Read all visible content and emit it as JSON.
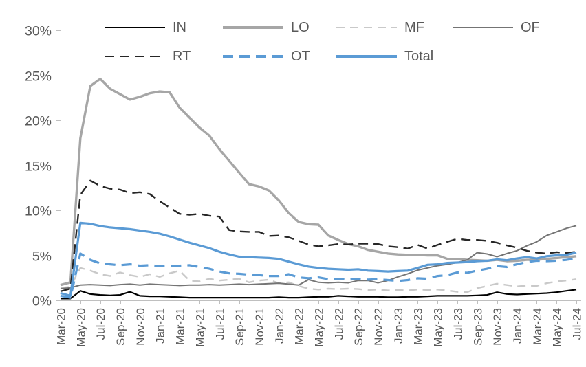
{
  "chart_data": {
    "type": "line",
    "title": "",
    "xlabel": "",
    "ylabel": "",
    "grid": false,
    "legend_position": "top",
    "ylim": [
      0,
      30
    ],
    "y_tick_step": 5,
    "y_tick_suffix": "%",
    "y_tick_labels": [
      "0%",
      "5%",
      "10%",
      "15%",
      "20%",
      "25%",
      "30%"
    ],
    "x_tick_every": 2,
    "x_categories": [
      "Mar-20",
      "Apr-20",
      "May-20",
      "Jun-20",
      "Jul-20",
      "Aug-20",
      "Sep-20",
      "Oct-20",
      "Nov-20",
      "Dec-20",
      "Jan-21",
      "Feb-21",
      "Mar-21",
      "Apr-21",
      "May-21",
      "Jun-21",
      "Jul-21",
      "Aug-21",
      "Sep-21",
      "Oct-21",
      "Nov-21",
      "Dec-21",
      "Jan-22",
      "Feb-22",
      "Mar-22",
      "Apr-22",
      "May-22",
      "Jun-22",
      "Jul-22",
      "Aug-22",
      "Sep-22",
      "Oct-22",
      "Nov-22",
      "Dec-22",
      "Jan-23",
      "Feb-23",
      "Mar-23",
      "Apr-23",
      "May-23",
      "Jun-23",
      "Jul-23",
      "Aug-23",
      "Sep-23",
      "Oct-23",
      "Nov-23",
      "Dec-23",
      "Jan-24",
      "Feb-24",
      "Mar-24",
      "Apr-24",
      "May-24",
      "Jun-24",
      "Jul-24"
    ],
    "axis_color": "#BFBFBF",
    "label_color": "#595959",
    "series": [
      {
        "name": "IN",
        "color": "#000000",
        "dash": null,
        "width": 2.2,
        "values": [
          0.2,
          0.2,
          1.05,
          0.7,
          0.6,
          0.55,
          0.6,
          0.95,
          0.5,
          0.45,
          0.45,
          0.4,
          0.35,
          0.3,
          0.3,
          0.3,
          0.3,
          0.3,
          0.3,
          0.3,
          0.3,
          0.3,
          0.35,
          0.3,
          0.3,
          0.35,
          0.4,
          0.4,
          0.5,
          0.45,
          0.4,
          0.4,
          0.4,
          0.35,
          0.35,
          0.4,
          0.4,
          0.45,
          0.5,
          0.5,
          0.5,
          0.5,
          0.55,
          0.6,
          0.9,
          0.7,
          0.65,
          0.7,
          0.75,
          0.8,
          0.9,
          1.05,
          1.2
        ]
      },
      {
        "name": "LO",
        "color": "#A6A6A6",
        "dash": null,
        "width": 3.4,
        "values": [
          1.7,
          2.0,
          18.0,
          23.8,
          24.6,
          23.5,
          22.9,
          22.3,
          22.6,
          23.0,
          23.2,
          23.1,
          21.4,
          20.3,
          19.2,
          18.3,
          16.8,
          15.5,
          14.2,
          12.9,
          12.65,
          12.2,
          11.1,
          9.7,
          8.7,
          8.45,
          8.4,
          7.2,
          6.7,
          6.25,
          6.0,
          5.6,
          5.4,
          5.2,
          5.1,
          5.05,
          5.05,
          5.0,
          5.0,
          4.6,
          4.6,
          4.5,
          4.45,
          4.4,
          4.5,
          4.35,
          4.4,
          4.5,
          4.5,
          4.6,
          4.7,
          4.8,
          4.9
        ]
      },
      {
        "name": "MF",
        "color": "#C9C9C9",
        "dash": [
          12,
          8
        ],
        "width": 2.4,
        "values": [
          1.4,
          1.5,
          3.6,
          3.3,
          2.9,
          2.7,
          3.1,
          2.8,
          2.6,
          2.9,
          2.6,
          3.0,
          3.3,
          2.2,
          2.1,
          2.4,
          2.2,
          2.3,
          2.4,
          2.0,
          2.2,
          2.3,
          1.9,
          2.0,
          1.6,
          1.3,
          1.2,
          1.3,
          1.25,
          1.3,
          1.25,
          1.15,
          1.2,
          1.1,
          1.15,
          1.1,
          1.2,
          1.15,
          1.2,
          1.1,
          0.95,
          0.9,
          1.35,
          1.6,
          1.85,
          1.7,
          1.55,
          1.65,
          1.6,
          1.9,
          2.1,
          2.2,
          2.35
        ]
      },
      {
        "name": "OF",
        "color": "#747474",
        "dash": null,
        "width": 2.0,
        "values": [
          1.3,
          1.4,
          1.7,
          1.75,
          1.7,
          1.65,
          1.75,
          1.8,
          1.7,
          1.8,
          1.75,
          1.7,
          1.65,
          1.7,
          1.7,
          1.75,
          1.7,
          1.75,
          1.8,
          1.75,
          1.8,
          1.85,
          1.9,
          1.8,
          1.7,
          2.3,
          2.0,
          1.95,
          2.0,
          1.95,
          2.2,
          2.2,
          1.95,
          2.2,
          2.6,
          2.95,
          3.35,
          3.6,
          3.85,
          4.0,
          4.2,
          4.5,
          5.3,
          5.15,
          4.85,
          5.2,
          5.5,
          6.05,
          6.5,
          7.2,
          7.6,
          8.0,
          8.3
        ]
      },
      {
        "name": "RT",
        "color": "#262626",
        "dash": [
          14,
          8
        ],
        "width": 2.4,
        "values": [
          1.0,
          1.3,
          11.7,
          13.3,
          12.7,
          12.4,
          12.3,
          11.9,
          12.0,
          11.8,
          11.0,
          10.3,
          9.6,
          9.5,
          9.6,
          9.4,
          9.3,
          7.8,
          7.65,
          7.6,
          7.6,
          7.15,
          7.2,
          7.0,
          6.6,
          6.2,
          6.0,
          6.1,
          6.25,
          6.2,
          6.3,
          6.3,
          6.25,
          6.0,
          5.9,
          5.75,
          6.15,
          5.75,
          6.15,
          6.5,
          6.85,
          6.7,
          6.7,
          6.6,
          6.4,
          6.1,
          5.85,
          5.5,
          5.3,
          5.2,
          5.35,
          5.25,
          5.4
        ]
      },
      {
        "name": "OT",
        "color": "#5B9BD5",
        "dash": [
          15,
          9
        ],
        "width": 3.2,
        "values": [
          0.5,
          0.3,
          5.2,
          4.5,
          4.1,
          4.0,
          3.9,
          4.0,
          3.85,
          3.9,
          3.8,
          3.85,
          3.85,
          3.9,
          3.7,
          3.5,
          3.2,
          3.0,
          2.95,
          2.85,
          2.8,
          2.7,
          2.7,
          2.9,
          2.55,
          2.45,
          2.55,
          2.35,
          2.4,
          2.3,
          2.4,
          2.3,
          2.35,
          2.25,
          2.15,
          2.25,
          2.45,
          2.4,
          2.7,
          2.8,
          3.1,
          3.05,
          3.3,
          3.5,
          3.8,
          3.7,
          4.0,
          4.25,
          4.4,
          4.35,
          4.4,
          4.5,
          4.65
        ]
      },
      {
        "name": "Total",
        "color": "#5B9BD5",
        "dash": null,
        "width": 3.2,
        "values": [
          0.8,
          0.5,
          8.6,
          8.5,
          8.25,
          8.1,
          8.0,
          7.9,
          7.75,
          7.6,
          7.4,
          7.1,
          6.75,
          6.4,
          6.1,
          5.8,
          5.4,
          5.1,
          4.85,
          4.8,
          4.75,
          4.7,
          4.6,
          4.3,
          4.0,
          3.75,
          3.6,
          3.5,
          3.45,
          3.4,
          3.45,
          3.3,
          3.25,
          3.2,
          3.25,
          3.3,
          3.6,
          3.95,
          4.0,
          4.15,
          4.2,
          4.25,
          4.35,
          4.4,
          4.55,
          4.45,
          4.65,
          4.8,
          4.65,
          4.9,
          5.0,
          5.05,
          5.3
        ]
      }
    ]
  }
}
